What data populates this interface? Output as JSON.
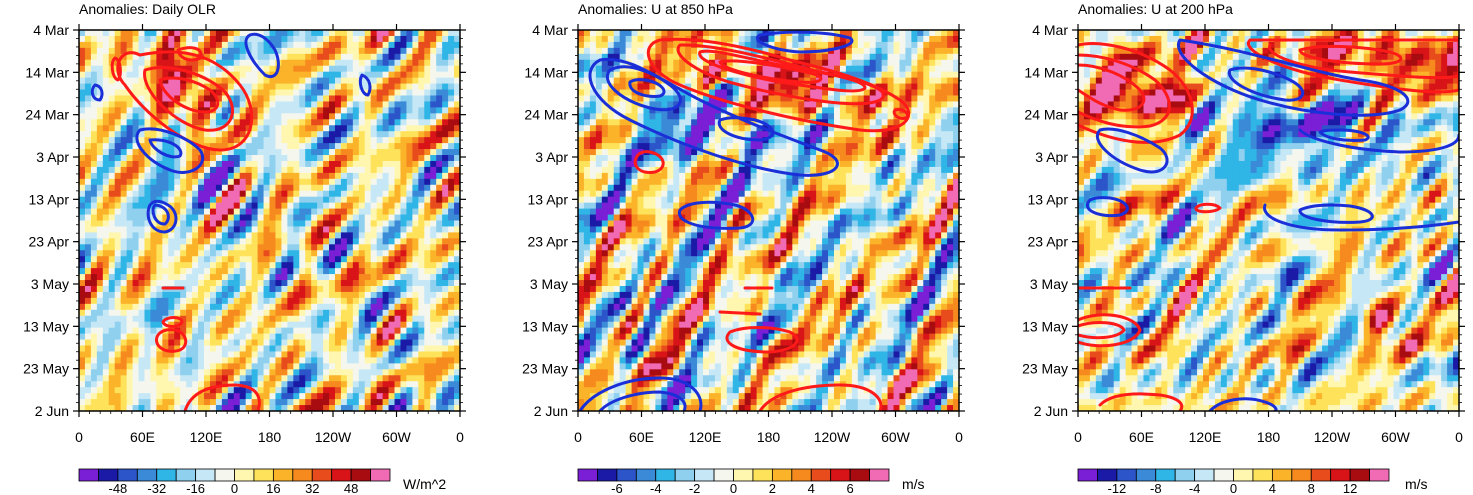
{
  "chart_data": [
    {
      "type": "heatmap",
      "title": "Anomalies: Daily OLR",
      "x_ticks": [
        "0",
        "60E",
        "120E",
        "180",
        "120W",
        "60W",
        "0"
      ],
      "y_ticks": [
        "4 Mar",
        "14 Mar",
        "24 Mar",
        "3 Apr",
        "13 Apr",
        "23 Apr",
        "3 May",
        "13 May",
        "23 May",
        "2 Jun"
      ],
      "colorbar": {
        "labels": [
          "-48",
          "-32",
          "-16",
          "0",
          "16",
          "32",
          "48"
        ],
        "levels": [
          -48,
          -32,
          -16,
          0,
          16,
          32,
          48
        ],
        "units": "W/m^2"
      }
    },
    {
      "type": "heatmap",
      "title": "Anomalies: U at 850 hPa",
      "x_ticks": [
        "0",
        "60E",
        "120E",
        "180",
        "120W",
        "60W",
        "0"
      ],
      "y_ticks": [
        "4 Mar",
        "14 Mar",
        "24 Mar",
        "3 Apr",
        "13 Apr",
        "23 Apr",
        "3 May",
        "13 May",
        "23 May",
        "2 Jun"
      ],
      "colorbar": {
        "labels": [
          "-6",
          "-4",
          "-2",
          "0",
          "2",
          "4",
          "6"
        ],
        "levels": [
          -6,
          -4,
          -2,
          0,
          2,
          4,
          6
        ],
        "units": "m/s"
      }
    },
    {
      "type": "heatmap",
      "title": "Anomalies: U at 200 hPa",
      "x_ticks": [
        "0",
        "60E",
        "120E",
        "180",
        "120W",
        "60W",
        "0"
      ],
      "y_ticks": [
        "4 Mar",
        "14 Mar",
        "24 Mar",
        "3 Apr",
        "13 Apr",
        "23 Apr",
        "3 May",
        "13 May",
        "23 May",
        "2 Jun"
      ],
      "colorbar": {
        "labels": [
          "-12",
          "-8",
          "-4",
          "0",
          "4",
          "8",
          "12"
        ],
        "levels": [
          -12,
          -8,
          -4,
          0,
          4,
          8,
          12
        ],
        "units": "m/s"
      }
    }
  ],
  "palette": [
    "#7a1fd6",
    "#1a1aa6",
    "#2b55c9",
    "#3b8ad8",
    "#2fb5e6",
    "#8fd0ee",
    "#c6e8f6",
    "#f5f7ee",
    "#fff6b0",
    "#fde25a",
    "#fbb32a",
    "#f68a1f",
    "#e84c1c",
    "#d81418",
    "#a80c10",
    "#f06ab4"
  ],
  "contour_colors": {
    "positive": "#ff1a1a",
    "negative": "#1a2fd8"
  }
}
